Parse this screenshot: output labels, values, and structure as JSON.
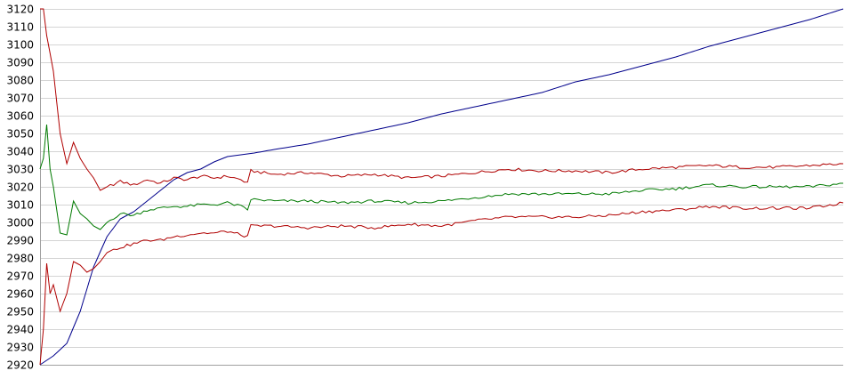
{
  "chart_data": {
    "type": "line",
    "title": "",
    "xlabel": "",
    "ylabel": "",
    "grid": true,
    "legend": "none",
    "ylim": [
      2920,
      3120
    ],
    "xlim": [
      0,
      120
    ],
    "yticks": [
      "3120",
      "3110",
      "3100",
      "3090",
      "3080",
      "3070",
      "3060",
      "3050",
      "3040",
      "3030",
      "3020",
      "3010",
      "3000",
      "2990",
      "2980",
      "2970",
      "2960",
      "2950",
      "2940",
      "2930",
      "2920"
    ],
    "series": [
      {
        "color": "#00008b",
        "points": [
          [
            0,
            2920
          ],
          [
            2,
            2925
          ],
          [
            4,
            2932
          ],
          [
            6,
            2950
          ],
          [
            8,
            2975
          ],
          [
            10,
            2992
          ],
          [
            12,
            3002
          ],
          [
            14,
            3006
          ],
          [
            16,
            3012
          ],
          [
            18,
            3018
          ],
          [
            20,
            3024
          ],
          [
            22,
            3028
          ],
          [
            24,
            3030
          ],
          [
            26,
            3034
          ],
          [
            28,
            3037
          ],
          [
            30,
            3038
          ],
          [
            32,
            3039
          ],
          [
            35,
            3041
          ],
          [
            40,
            3044
          ],
          [
            45,
            3048
          ],
          [
            50,
            3052
          ],
          [
            55,
            3056
          ],
          [
            60,
            3061
          ],
          [
            65,
            3065
          ],
          [
            70,
            3069
          ],
          [
            75,
            3073
          ],
          [
            80,
            3079
          ],
          [
            85,
            3083
          ],
          [
            90,
            3088
          ],
          [
            95,
            3093
          ],
          [
            100,
            3099
          ],
          [
            105,
            3104
          ],
          [
            110,
            3109
          ],
          [
            115,
            3114
          ],
          [
            120,
            3120
          ]
        ]
      },
      {
        "color": "#b00000",
        "points": [
          [
            0,
            3120
          ],
          [
            0.5,
            3120
          ],
          [
            1,
            3105
          ],
          [
            2,
            3085
          ],
          [
            3,
            3050
          ],
          [
            4,
            3033
          ],
          [
            5,
            3045
          ],
          [
            6,
            3036
          ],
          [
            7,
            3030
          ],
          [
            8,
            3025
          ],
          [
            9,
            3018
          ],
          [
            10,
            3020
          ],
          [
            12,
            3023
          ],
          [
            14,
            3021
          ],
          [
            16,
            3024
          ],
          [
            18,
            3022
          ],
          [
            20,
            3025
          ],
          [
            22,
            3024
          ],
          [
            24,
            3026
          ],
          [
            26,
            3025
          ],
          [
            28,
            3026
          ],
          [
            30,
            3024
          ],
          [
            31,
            3022
          ],
          [
            31.5,
            3029
          ],
          [
            35,
            3027
          ],
          [
            40,
            3028
          ],
          [
            45,
            3026
          ],
          [
            50,
            3027
          ],
          [
            55,
            3025
          ],
          [
            60,
            3026
          ],
          [
            65,
            3028
          ],
          [
            70,
            3030
          ],
          [
            75,
            3029
          ],
          [
            80,
            3029
          ],
          [
            85,
            3028
          ],
          [
            90,
            3030
          ],
          [
            95,
            3031
          ],
          [
            100,
            3032
          ],
          [
            105,
            3031
          ],
          [
            110,
            3031
          ],
          [
            115,
            3032
          ],
          [
            120,
            3033
          ]
        ]
      },
      {
        "color": "#007a00",
        "points": [
          [
            0,
            3030
          ],
          [
            0.5,
            3036
          ],
          [
            1,
            3055
          ],
          [
            1.5,
            3030
          ],
          [
            2,
            3020
          ],
          [
            3,
            2994
          ],
          [
            4,
            2993
          ],
          [
            5,
            3012
          ],
          [
            6,
            3005
          ],
          [
            7,
            3002
          ],
          [
            8,
            2998
          ],
          [
            9,
            2996
          ],
          [
            10,
            3000
          ],
          [
            12,
            3005
          ],
          [
            14,
            3004
          ],
          [
            16,
            3007
          ],
          [
            18,
            3008
          ],
          [
            20,
            3009
          ],
          [
            22,
            3009
          ],
          [
            24,
            3010
          ],
          [
            26,
            3010
          ],
          [
            28,
            3011
          ],
          [
            30,
            3009
          ],
          [
            31,
            3007
          ],
          [
            31.5,
            3013
          ],
          [
            35,
            3012
          ],
          [
            40,
            3012
          ],
          [
            45,
            3011
          ],
          [
            50,
            3012
          ],
          [
            55,
            3011
          ],
          [
            60,
            3012
          ],
          [
            65,
            3014
          ],
          [
            70,
            3016
          ],
          [
            75,
            3016
          ],
          [
            80,
            3016
          ],
          [
            85,
            3016
          ],
          [
            90,
            3018
          ],
          [
            95,
            3019
          ],
          [
            100,
            3021
          ],
          [
            105,
            3020
          ],
          [
            110,
            3020
          ],
          [
            115,
            3020
          ],
          [
            120,
            3022
          ]
        ]
      },
      {
        "color": "#b00000",
        "points": [
          [
            0,
            2920
          ],
          [
            0.5,
            2940
          ],
          [
            1,
            2977
          ],
          [
            1.5,
            2960
          ],
          [
            2,
            2965
          ],
          [
            3,
            2950
          ],
          [
            4,
            2960
          ],
          [
            5,
            2978
          ],
          [
            6,
            2976
          ],
          [
            7,
            2972
          ],
          [
            8,
            2974
          ],
          [
            9,
            2978
          ],
          [
            10,
            2983
          ],
          [
            12,
            2986
          ],
          [
            14,
            2988
          ],
          [
            16,
            2990
          ],
          [
            18,
            2990
          ],
          [
            20,
            2992
          ],
          [
            22,
            2993
          ],
          [
            24,
            2994
          ],
          [
            26,
            2994
          ],
          [
            28,
            2995
          ],
          [
            30,
            2993
          ],
          [
            31,
            2992
          ],
          [
            31.5,
            2998
          ],
          [
            35,
            2998
          ],
          [
            40,
            2997
          ],
          [
            45,
            2998
          ],
          [
            50,
            2997
          ],
          [
            55,
            2999
          ],
          [
            60,
            2998
          ],
          [
            65,
            3001
          ],
          [
            70,
            3003
          ],
          [
            75,
            3003
          ],
          [
            80,
            3003
          ],
          [
            85,
            3004
          ],
          [
            90,
            3006
          ],
          [
            95,
            3007
          ],
          [
            100,
            3009
          ],
          [
            105,
            3008
          ],
          [
            110,
            3008
          ],
          [
            115,
            3008
          ],
          [
            120,
            3011
          ]
        ]
      }
    ]
  }
}
